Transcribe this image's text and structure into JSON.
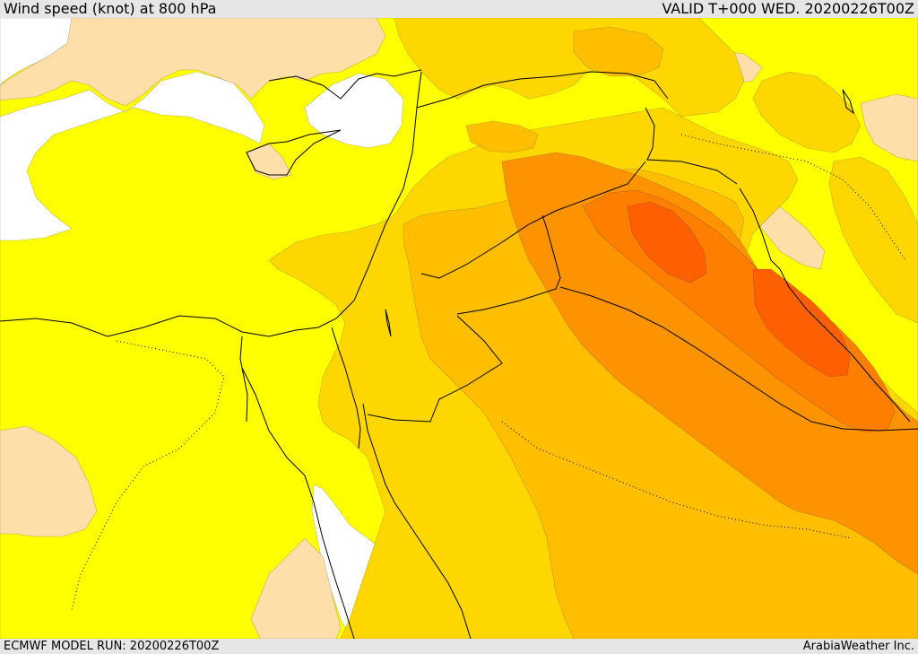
{
  "header": {
    "title": "Wind speed (knot) at 800 hPa",
    "valid": "VALID T+000 WED. 20200226T00Z"
  },
  "footer": {
    "model_run": "ECMWF MODEL RUN: 20200226T00Z",
    "credit": "ArabiaWeather Inc."
  },
  "map": {
    "colors": {
      "sea_white": "#ffffff",
      "band_peach": "#fedfa9",
      "band_yellow": "#ffff00",
      "band_gold": "#ffd700",
      "band_amber": "#ffbf00",
      "band_orange": "#fe9300",
      "band_dark_orange": "#fe7f00",
      "band_red_orange": "#fe5f00",
      "coastline": "#000000"
    }
  }
}
